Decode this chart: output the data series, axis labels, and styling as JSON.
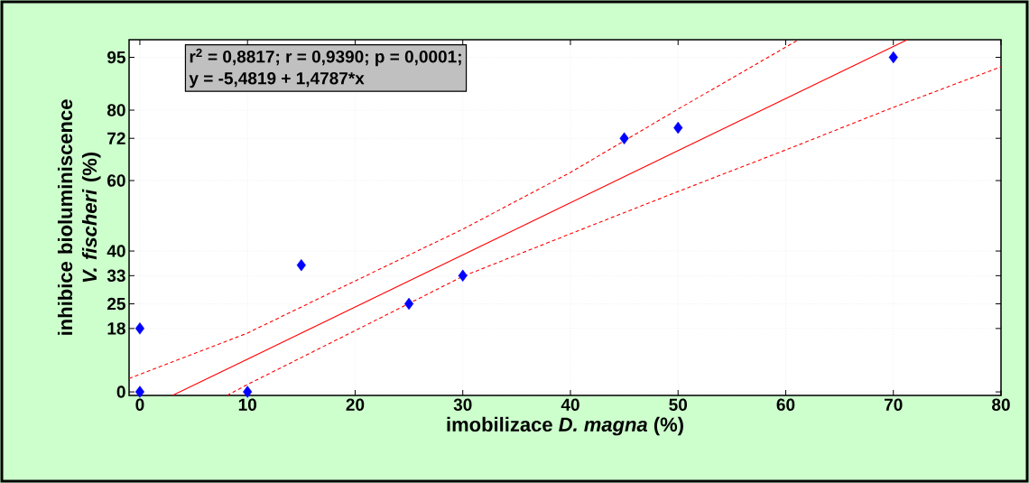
{
  "chart_data": {
    "type": "scatter",
    "xlabel": "imobilizace *D. magna* (%)",
    "ylabel": "inhibice bioluminiscence *V. fischeri* (%)",
    "annotations": [
      "r$^{2}$ = 0,8817;  r = 0,9390; p = 0,0001;",
      "y = -5,4819 + 1,4787*x"
    ],
    "xlim": [
      -1,
      80
    ],
    "ylim": [
      -1,
      100
    ],
    "xticks": [
      0,
      10,
      20,
      30,
      40,
      50,
      60,
      70,
      80
    ],
    "yticks": [
      0,
      18,
      25,
      33,
      40,
      60,
      72,
      80,
      95
    ],
    "grid": true,
    "series": [
      {
        "marker": "diamond",
        "color": "#0000ff",
        "x": [
          0,
          0,
          10,
          15,
          25,
          30,
          45,
          50,
          70
        ],
        "values": [
          0,
          18,
          0,
          36,
          25,
          33,
          72,
          75,
          95
        ]
      },
      {
        "type": "line",
        "marker": "none",
        "line_style": "solid",
        "color": "#ff0000",
        "x": [
          3.03,
          71.3
        ],
        "values": [
          -1,
          100
        ]
      },
      {
        "type": "line",
        "marker": "none",
        "line_style": "dashed",
        "color": "#ff0000",
        "x": [
          -1,
          10,
          20,
          30,
          40,
          50,
          61.2
        ],
        "values": [
          3.8,
          16.7,
          31.5,
          46.2,
          62.3,
          80.3,
          100
        ]
      },
      {
        "type": "line",
        "marker": "none",
        "line_style": "dashed",
        "color": "#ff0000",
        "x": [
          8.1,
          10,
          20,
          30,
          40,
          50,
          60,
          70,
          80
        ],
        "values": [
          -1,
          2.1,
          17.4,
          32.8,
          44.9,
          56.9,
          68.7,
          80.8,
          92.3
        ]
      }
    ]
  }
}
